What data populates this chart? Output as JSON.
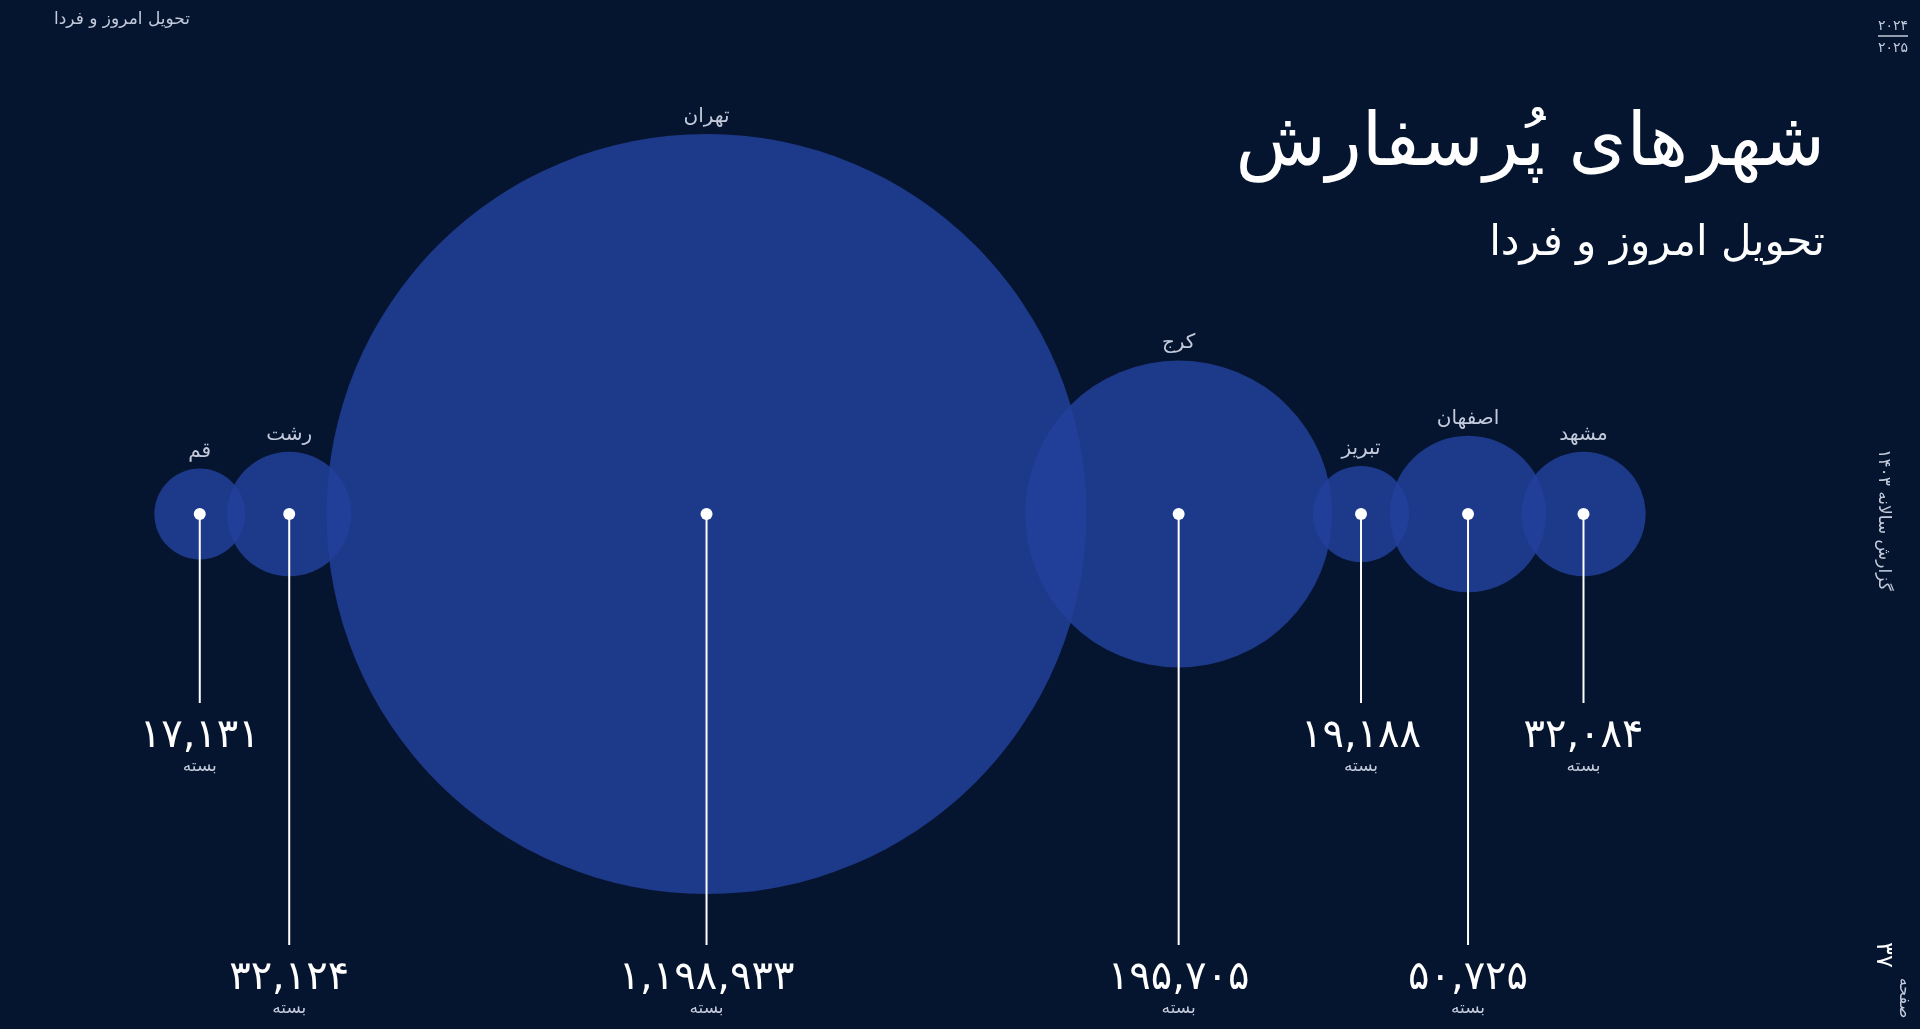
{
  "chart_data": {
    "type": "other",
    "title": "شهرهای پُرسفارش",
    "subtitle": "تحویل امروز و فردا",
    "categories": [
      "قم",
      "رشت",
      "تهران",
      "کرج",
      "تبریز",
      "اصفهان",
      "مشهد"
    ],
    "values": [
      17131,
      32124,
      1198933,
      195705,
      19188,
      50725,
      32084
    ],
    "value_labels": [
      "۱۷,۱۳۱",
      "۳۲,۱۲۴",
      "۱,۱۹۸,۹۳۳",
      "۱۹۵,۷۰۵",
      "۱۹,۱۸۸",
      "۵۰,۷۲۵",
      "۳۲,۰۸۴"
    ],
    "color": "#22409a",
    "annotations": [
      "تحویل امروز و فردا",
      "۲۰۲۴",
      "۲۰۲۵",
      "گزارش سالانه ۱۴۰۳",
      "۳۷",
      "صفحه",
      "بسته",
      "بسته",
      "بسته",
      "بسته",
      "بسته",
      "بسته",
      "بسته"
    ]
  }
}
